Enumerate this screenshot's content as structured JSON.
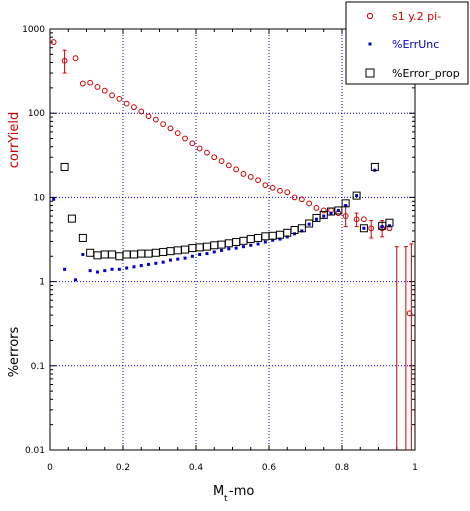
{
  "chart_data": {
    "type": "scatter",
    "xlabel_main": "M",
    "xlabel_sub": "t",
    "xlabel_rest": "-mo",
    "ylabel_top": "corrYield",
    "ylabel_bottom": "%errors",
    "xlim": [
      0,
      1
    ],
    "ylim": [
      0.01,
      1000
    ],
    "yscale": "log",
    "grid": true,
    "legend_position": "top-right",
    "x_ticks": [
      "0",
      "0.2",
      "0.4",
      "0.6",
      "0.8",
      "1"
    ],
    "y_ticks": [
      "1000",
      "100",
      "10",
      "1",
      "0.1",
      "0.01"
    ],
    "colors": {
      "red": "#cc0000",
      "blue": "#0000cc",
      "black": "#000000",
      "grid": "#0000cc"
    },
    "series": [
      {
        "name": "s1 y.2 pi-",
        "marker": "circle",
        "color": "#cc0000",
        "points": [
          [
            0.01,
            700
          ],
          [
            0.04,
            420
          ],
          [
            0.07,
            450
          ],
          [
            0.09,
            225
          ],
          [
            0.11,
            230
          ],
          [
            0.13,
            205
          ],
          [
            0.15,
            185
          ],
          [
            0.17,
            163
          ],
          [
            0.19,
            148
          ],
          [
            0.21,
            130
          ],
          [
            0.23,
            118
          ],
          [
            0.25,
            105
          ],
          [
            0.27,
            92
          ],
          [
            0.29,
            84
          ],
          [
            0.31,
            74
          ],
          [
            0.33,
            66
          ],
          [
            0.35,
            58
          ],
          [
            0.37,
            50
          ],
          [
            0.39,
            44
          ],
          [
            0.41,
            38
          ],
          [
            0.43,
            34
          ],
          [
            0.45,
            30
          ],
          [
            0.47,
            27
          ],
          [
            0.49,
            24
          ],
          [
            0.51,
            21.5
          ],
          [
            0.53,
            19
          ],
          [
            0.55,
            17.5
          ],
          [
            0.57,
            16
          ],
          [
            0.59,
            14
          ],
          [
            0.61,
            13
          ],
          [
            0.63,
            12
          ],
          [
            0.65,
            11.5
          ],
          [
            0.67,
            10
          ],
          [
            0.69,
            9.5
          ],
          [
            0.71,
            8.5
          ],
          [
            0.73,
            7.5
          ],
          [
            0.75,
            7
          ],
          [
            0.77,
            7
          ],
          [
            0.79,
            6.5
          ],
          [
            0.81,
            6
          ],
          [
            0.84,
            5.5
          ],
          [
            0.86,
            5.5
          ],
          [
            0.88,
            4.3
          ],
          [
            0.91,
            4.3
          ],
          [
            0.93,
            4.3
          ],
          [
            0.985,
            0.42
          ]
        ],
        "error_bars": [
          [
            0.04,
            300,
            560
          ],
          [
            0.81,
            4.5,
            8
          ],
          [
            0.84,
            4.5,
            6.5
          ],
          [
            0.88,
            3.3,
            5.3
          ],
          [
            0.91,
            3.4,
            5.3
          ],
          [
            0.95,
            0.01,
            2.6
          ],
          [
            0.975,
            0.01,
            2.6
          ],
          [
            0.99,
            0.01,
            2.8
          ]
        ]
      },
      {
        "name": "%ErrUnc",
        "marker": "square-small",
        "color": "#0000cc",
        "points": [
          [
            0.01,
            9.5
          ],
          [
            0.04,
            1.4
          ],
          [
            0.07,
            1.05
          ],
          [
            0.09,
            2.1
          ],
          [
            0.11,
            1.35
          ],
          [
            0.13,
            1.3
          ],
          [
            0.15,
            1.35
          ],
          [
            0.17,
            1.4
          ],
          [
            0.19,
            1.4
          ],
          [
            0.21,
            1.45
          ],
          [
            0.23,
            1.5
          ],
          [
            0.25,
            1.55
          ],
          [
            0.27,
            1.6
          ],
          [
            0.29,
            1.65
          ],
          [
            0.31,
            1.7
          ],
          [
            0.33,
            1.8
          ],
          [
            0.35,
            1.85
          ],
          [
            0.37,
            1.9
          ],
          [
            0.39,
            2.0
          ],
          [
            0.41,
            2.1
          ],
          [
            0.43,
            2.15
          ],
          [
            0.45,
            2.25
          ],
          [
            0.47,
            2.35
          ],
          [
            0.49,
            2.45
          ],
          [
            0.51,
            2.5
          ],
          [
            0.53,
            2.6
          ],
          [
            0.55,
            2.7
          ],
          [
            0.57,
            2.8
          ],
          [
            0.59,
            2.95
          ],
          [
            0.61,
            3.1
          ],
          [
            0.63,
            3.2
          ],
          [
            0.65,
            3.4
          ],
          [
            0.67,
            3.7
          ],
          [
            0.69,
            4.0
          ],
          [
            0.71,
            4.8
          ],
          [
            0.73,
            5.5
          ],
          [
            0.75,
            6.0
          ],
          [
            0.77,
            6.5
          ],
          [
            0.79,
            7.0
          ],
          [
            0.81,
            8.0
          ],
          [
            0.84,
            10.5
          ],
          [
            0.86,
            4.3
          ],
          [
            0.89,
            21
          ],
          [
            0.91,
            4.5
          ],
          [
            0.93,
            4.6
          ]
        ]
      },
      {
        "name": "%Error_prop",
        "marker": "square-open",
        "color": "#000000",
        "points": [
          [
            0.04,
            23
          ],
          [
            0.06,
            5.6
          ],
          [
            0.09,
            3.3
          ],
          [
            0.11,
            2.2
          ],
          [
            0.13,
            2.05
          ],
          [
            0.15,
            2.1
          ],
          [
            0.17,
            2.1
          ],
          [
            0.19,
            2.0
          ],
          [
            0.21,
            2.1
          ],
          [
            0.23,
            2.1
          ],
          [
            0.25,
            2.15
          ],
          [
            0.27,
            2.15
          ],
          [
            0.29,
            2.2
          ],
          [
            0.31,
            2.25
          ],
          [
            0.33,
            2.3
          ],
          [
            0.35,
            2.35
          ],
          [
            0.37,
            2.4
          ],
          [
            0.39,
            2.5
          ],
          [
            0.41,
            2.55
          ],
          [
            0.43,
            2.6
          ],
          [
            0.45,
            2.7
          ],
          [
            0.47,
            2.75
          ],
          [
            0.49,
            2.85
          ],
          [
            0.51,
            2.95
          ],
          [
            0.53,
            3.05
          ],
          [
            0.55,
            3.2
          ],
          [
            0.57,
            3.3
          ],
          [
            0.59,
            3.45
          ],
          [
            0.61,
            3.5
          ],
          [
            0.63,
            3.6
          ],
          [
            0.65,
            3.8
          ],
          [
            0.67,
            4.1
          ],
          [
            0.69,
            4.3
          ],
          [
            0.71,
            4.9
          ],
          [
            0.73,
            5.7
          ],
          [
            0.75,
            6.2
          ],
          [
            0.77,
            6.8
          ],
          [
            0.79,
            7.0
          ],
          [
            0.81,
            8.5
          ],
          [
            0.84,
            10.5
          ],
          [
            0.86,
            4.3
          ],
          [
            0.89,
            23
          ],
          [
            0.91,
            4.6
          ],
          [
            0.93,
            5.0
          ]
        ]
      }
    ]
  }
}
